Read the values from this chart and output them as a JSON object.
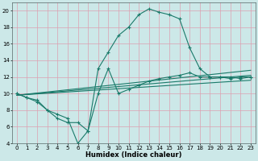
{
  "xlabel": "Humidex (Indice chaleur)",
  "bg_color": "#cce8e8",
  "grid_color": "#dda0b0",
  "line_color": "#1a7a6a",
  "xlim": [
    -0.5,
    23.5
  ],
  "ylim": [
    4,
    21
  ],
  "xticks": [
    0,
    1,
    2,
    3,
    4,
    5,
    6,
    7,
    8,
    9,
    10,
    11,
    12,
    13,
    14,
    15,
    16,
    17,
    18,
    19,
    20,
    21,
    22,
    23
  ],
  "yticks": [
    4,
    6,
    8,
    10,
    12,
    14,
    16,
    18,
    20
  ],
  "line1_x": [
    0,
    1,
    2,
    3,
    4,
    5,
    6,
    7,
    8,
    9,
    10,
    11,
    12,
    13,
    14,
    15,
    16,
    17,
    18,
    19,
    20,
    21,
    22,
    23
  ],
  "line1_y": [
    10.0,
    9.5,
    9.0,
    8.0,
    7.0,
    6.5,
    6.5,
    5.5,
    13.0,
    15.0,
    17.0,
    18.0,
    19.5,
    20.2,
    19.8,
    19.5,
    19.0,
    15.5,
    13.0,
    12.0,
    12.0,
    11.8,
    12.0,
    12.0
  ],
  "line2_x": [
    0,
    1,
    2,
    3,
    4,
    5,
    6,
    7,
    8,
    9,
    10,
    11,
    12,
    13,
    14,
    15,
    16,
    17,
    18,
    19,
    20,
    21,
    22,
    23
  ],
  "line2_y": [
    10.0,
    9.5,
    9.2,
    8.0,
    7.5,
    7.0,
    4.0,
    5.5,
    10.0,
    13.0,
    10.0,
    10.5,
    11.0,
    11.5,
    11.8,
    12.0,
    12.2,
    12.5,
    12.0,
    12.0,
    12.0,
    12.0,
    11.8,
    12.0
  ],
  "line3_x": [
    0,
    23
  ],
  "line3_y": [
    9.8,
    12.2
  ],
  "line4_x": [
    0,
    23
  ],
  "line4_y": [
    9.8,
    11.6
  ],
  "line5_x": [
    0,
    23
  ],
  "line5_y": [
    9.8,
    12.8
  ]
}
